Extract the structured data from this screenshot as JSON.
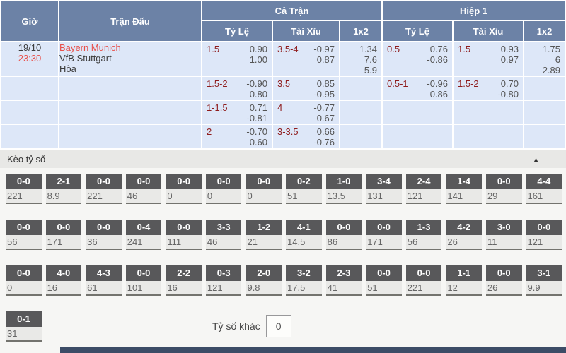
{
  "odds_table": {
    "headers": {
      "time": "Giờ",
      "match": "Trận Đấu",
      "full_match": "Cả Trận",
      "first_half": "Hiệp 1",
      "handicap": "Tỷ Lệ",
      "over_under": "Tài Xỉu",
      "one_x_two": "1x2"
    },
    "match": {
      "date": "19/10",
      "time": "23:30",
      "home": "Bayern Munich",
      "away": "VfB Stuttgart",
      "draw": "Hòa"
    },
    "rows": [
      {
        "full_hc": {
          "line": "1.5",
          "v1": "0.90",
          "v2": "1.00"
        },
        "full_ou": {
          "line": "3.5-4",
          "v1": "-0.97",
          "v2": "0.87"
        },
        "full_1x2": [
          "1.34",
          "7.6",
          "5.9"
        ],
        "half_hc": {
          "line": "0.5",
          "v1": "0.76",
          "v2": "-0.86"
        },
        "half_ou": {
          "line": "1.5",
          "v1": "0.93",
          "v2": "0.97"
        },
        "half_1x2": [
          "1.75",
          "6",
          "2.89"
        ]
      },
      {
        "full_hc": {
          "line": "1.5-2",
          "v1": "-0.90",
          "v2": "0.80"
        },
        "full_ou": {
          "line": "3.5",
          "v1": "0.85",
          "v2": "-0.95"
        },
        "half_hc": {
          "line": "0.5-1",
          "v1": "-0.96",
          "v2": "0.86"
        },
        "half_ou": {
          "line": "1.5-2",
          "v1": "0.70",
          "v2": "-0.80"
        }
      },
      {
        "full_hc": {
          "line": "1-1.5",
          "v1": "0.71",
          "v2": "-0.81"
        },
        "full_ou": {
          "line": "4",
          "v1": "-0.77",
          "v2": "0.67"
        }
      },
      {
        "full_hc": {
          "line": "2",
          "v1": "-0.70",
          "v2": "0.60"
        },
        "full_ou": {
          "line": "3-3.5",
          "v1": "0.66",
          "v2": "-0.76"
        }
      }
    ]
  },
  "score_section": {
    "title": "Kèo tỷ số",
    "collapse_icon": "▲",
    "other_score_label": "Tỷ số khác",
    "other_score_value": "0",
    "rows": [
      [
        {
          "score": "0-0",
          "odds": "221"
        },
        {
          "score": "2-1",
          "odds": "8.9"
        },
        {
          "score": "0-0",
          "odds": "221"
        },
        {
          "score": "0-0",
          "odds": "46"
        },
        {
          "score": "0-0",
          "odds": "0"
        },
        {
          "score": "0-0",
          "odds": "0"
        },
        {
          "score": "0-0",
          "odds": "0"
        },
        {
          "score": "0-2",
          "odds": "51"
        },
        {
          "score": "1-0",
          "odds": "13.5"
        },
        {
          "score": "3-4",
          "odds": "131"
        },
        {
          "score": "2-4",
          "odds": "121"
        },
        {
          "score": "1-4",
          "odds": "141"
        },
        {
          "score": "0-0",
          "odds": "29"
        },
        {
          "score": "4-4",
          "odds": "161"
        }
      ],
      [
        {
          "score": "0-0",
          "odds": "56"
        },
        {
          "score": "0-0",
          "odds": "171"
        },
        {
          "score": "0-0",
          "odds": "36"
        },
        {
          "score": "0-4",
          "odds": "241"
        },
        {
          "score": "0-0",
          "odds": "111"
        },
        {
          "score": "3-3",
          "odds": "46"
        },
        {
          "score": "1-2",
          "odds": "21"
        },
        {
          "score": "4-1",
          "odds": "14.5"
        },
        {
          "score": "0-0",
          "odds": "86"
        },
        {
          "score": "0-0",
          "odds": "171"
        },
        {
          "score": "1-3",
          "odds": "56"
        },
        {
          "score": "4-2",
          "odds": "26"
        },
        {
          "score": "3-0",
          "odds": "11"
        },
        {
          "score": "0-0",
          "odds": "121"
        }
      ],
      [
        {
          "score": "0-0",
          "odds": "0"
        },
        {
          "score": "4-0",
          "odds": "16"
        },
        {
          "score": "4-3",
          "odds": "61"
        },
        {
          "score": "0-0",
          "odds": "101"
        },
        {
          "score": "2-2",
          "odds": "16"
        },
        {
          "score": "0-3",
          "odds": "121"
        },
        {
          "score": "2-0",
          "odds": "9.8"
        },
        {
          "score": "3-2",
          "odds": "17.5"
        },
        {
          "score": "2-3",
          "odds": "41"
        },
        {
          "score": "0-0",
          "odds": "51"
        },
        {
          "score": "0-0",
          "odds": "221"
        },
        {
          "score": "1-1",
          "odds": "12"
        },
        {
          "score": "0-0",
          "odds": "26"
        },
        {
          "score": "3-1",
          "odds": "9.9"
        }
      ],
      [
        {
          "score": "0-1",
          "odds": "31"
        }
      ]
    ]
  },
  "colors": {
    "header_bg": "#6c82a6",
    "row_bg": "#dde7f8",
    "handicap_red": "#8f1d1d",
    "team_red": "#e8504a",
    "score_button_bg": "#58585a"
  }
}
